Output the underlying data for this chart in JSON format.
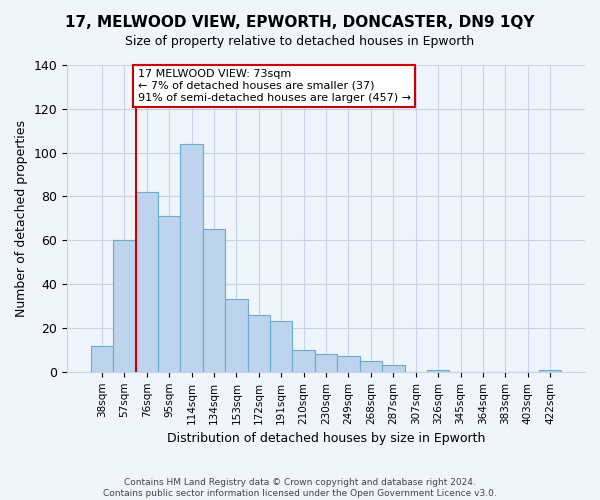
{
  "title": "17, MELWOOD VIEW, EPWORTH, DONCASTER, DN9 1QY",
  "subtitle": "Size of property relative to detached houses in Epworth",
  "xlabel": "Distribution of detached houses by size in Epworth",
  "ylabel": "Number of detached properties",
  "bar_labels": [
    "38sqm",
    "57sqm",
    "76sqm",
    "95sqm",
    "114sqm",
    "134sqm",
    "153sqm",
    "172sqm",
    "191sqm",
    "210sqm",
    "230sqm",
    "249sqm",
    "268sqm",
    "287sqm",
    "307sqm",
    "326sqm",
    "345sqm",
    "364sqm",
    "383sqm",
    "403sqm",
    "422sqm"
  ],
  "bar_values": [
    12,
    60,
    82,
    71,
    104,
    65,
    33,
    26,
    23,
    10,
    8,
    7,
    5,
    3,
    0,
    1,
    0,
    0,
    0,
    0,
    1
  ],
  "bar_color": "#bdd4ec",
  "bar_edge_color": "#6aaad4",
  "vline_color": "#cc0000",
  "annotation_text": "17 MELWOOD VIEW: 73sqm\n← 7% of detached houses are smaller (37)\n91% of semi-detached houses are larger (457) →",
  "annotation_box_color": "#ffffff",
  "annotation_box_edge": "#cc0000",
  "ylim": [
    0,
    140
  ],
  "yticks": [
    0,
    20,
    40,
    60,
    80,
    100,
    120,
    140
  ],
  "footer_line1": "Contains HM Land Registry data © Crown copyright and database right 2024.",
  "footer_line2": "Contains public sector information licensed under the Open Government Licence v3.0.",
  "bg_color": "#f0f4fb",
  "grid_color": "#c8d4e8"
}
